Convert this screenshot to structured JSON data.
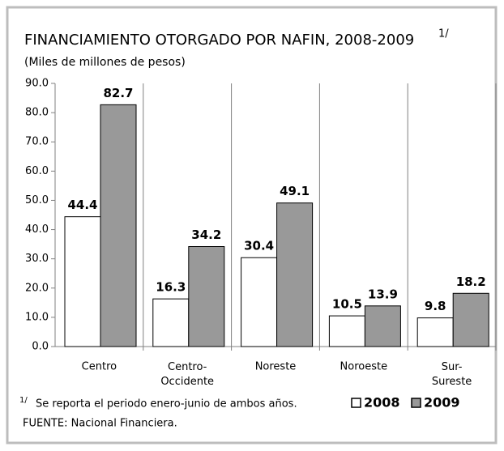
{
  "chart_data": {
    "type": "bar",
    "title": "FINANCIAMIENTO OTORGADO POR NAFIN, 2008-2009",
    "title_note": "1/",
    "subtitle": "(Miles de millones de pesos)",
    "categories": [
      "Centro",
      "Centro-Occidente",
      "Noreste",
      "Noroeste",
      "Sur-Sureste"
    ],
    "series": [
      {
        "name": "2008",
        "color": "#ffffff",
        "values": [
          44.4,
          16.3,
          30.4,
          10.5,
          9.8
        ]
      },
      {
        "name": "2009",
        "color": "#999999",
        "values": [
          82.7,
          34.2,
          49.1,
          13.9,
          18.2
        ]
      }
    ],
    "ylim": [
      0,
      90
    ],
    "yticks": [
      {
        "value": 0,
        "label": "0.0"
      },
      {
        "value": 10,
        "label": "10.0"
      },
      {
        "value": 20,
        "label": "20.0"
      },
      {
        "value": 30,
        "label": "30.0"
      },
      {
        "value": 40,
        "label": "40.0"
      },
      {
        "value": 50,
        "label": "50.0"
      },
      {
        "value": 60,
        "label": "60.0"
      },
      {
        "value": 70,
        "label": "70.0"
      },
      {
        "value": 80,
        "label": "80.0"
      },
      {
        "value": 90,
        "label": "90.0"
      }
    ],
    "grid": false,
    "legend": "bottom-right",
    "footnote": {
      "marker": "1/",
      "text": "Se reporta el periodo enero-junio de ambos años."
    },
    "source": "FUENTE: Nacional Financiera."
  }
}
